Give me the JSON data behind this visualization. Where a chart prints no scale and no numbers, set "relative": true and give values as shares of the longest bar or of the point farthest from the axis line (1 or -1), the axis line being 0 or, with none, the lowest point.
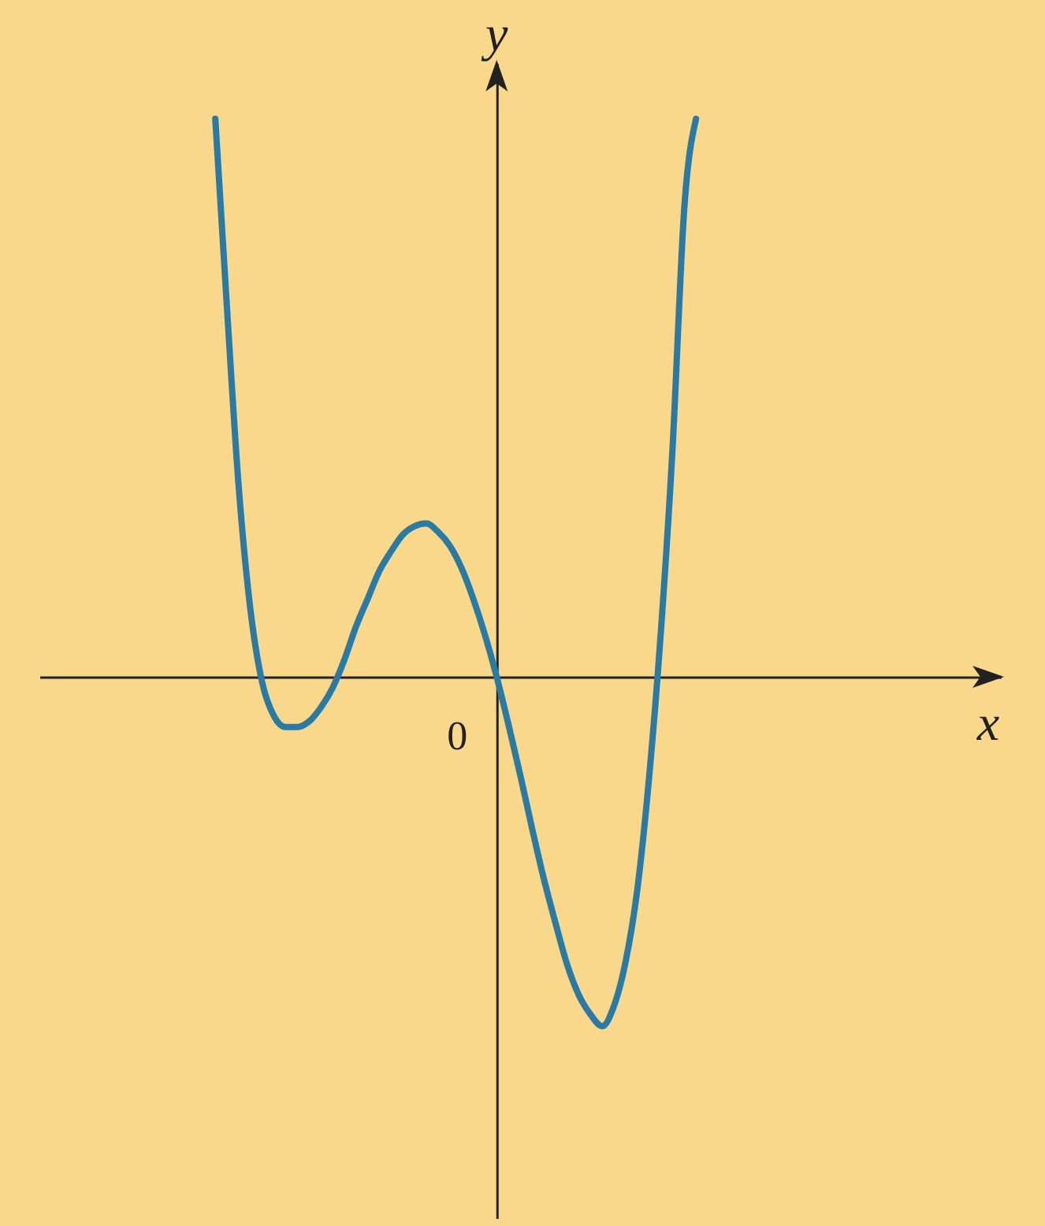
{
  "chart_data": {
    "type": "line",
    "relative": true,
    "annotations": [
      "0",
      "x",
      "y"
    ],
    "categories": [
      null,
      null,
      null,
      null,
      null,
      null,
      null,
      null,
      null,
      null,
      null,
      null,
      null,
      null,
      null,
      null,
      null,
      null,
      null,
      null,
      null,
      null,
      null,
      null,
      null,
      null,
      null,
      null,
      null,
      null,
      null,
      null,
      null,
      null,
      null,
      null,
      null,
      null,
      null,
      null,
      null,
      null
    ],
    "series": [
      {
        "color": "#2a7aa6",
        "values": [
          1.0,
          0.66,
          0.34,
          0.12,
          -0.01,
          -0.07,
          -0.09,
          -0.09,
          -0.08,
          -0.055,
          -0.02,
          0.03,
          0.09,
          0.14,
          0.19,
          0.225,
          0.255,
          0.27,
          0.275,
          0.26,
          0.235,
          0.195,
          0.14,
          0.075,
          0,
          -0.085,
          -0.175,
          -0.27,
          -0.36,
          -0.44,
          -0.515,
          -0.57,
          -0.605,
          -0.626,
          -0.59,
          -0.51,
          -0.38,
          -0.18,
          0.08,
          0.41,
          0.84,
          1.0
        ]
      }
    ]
  }
}
